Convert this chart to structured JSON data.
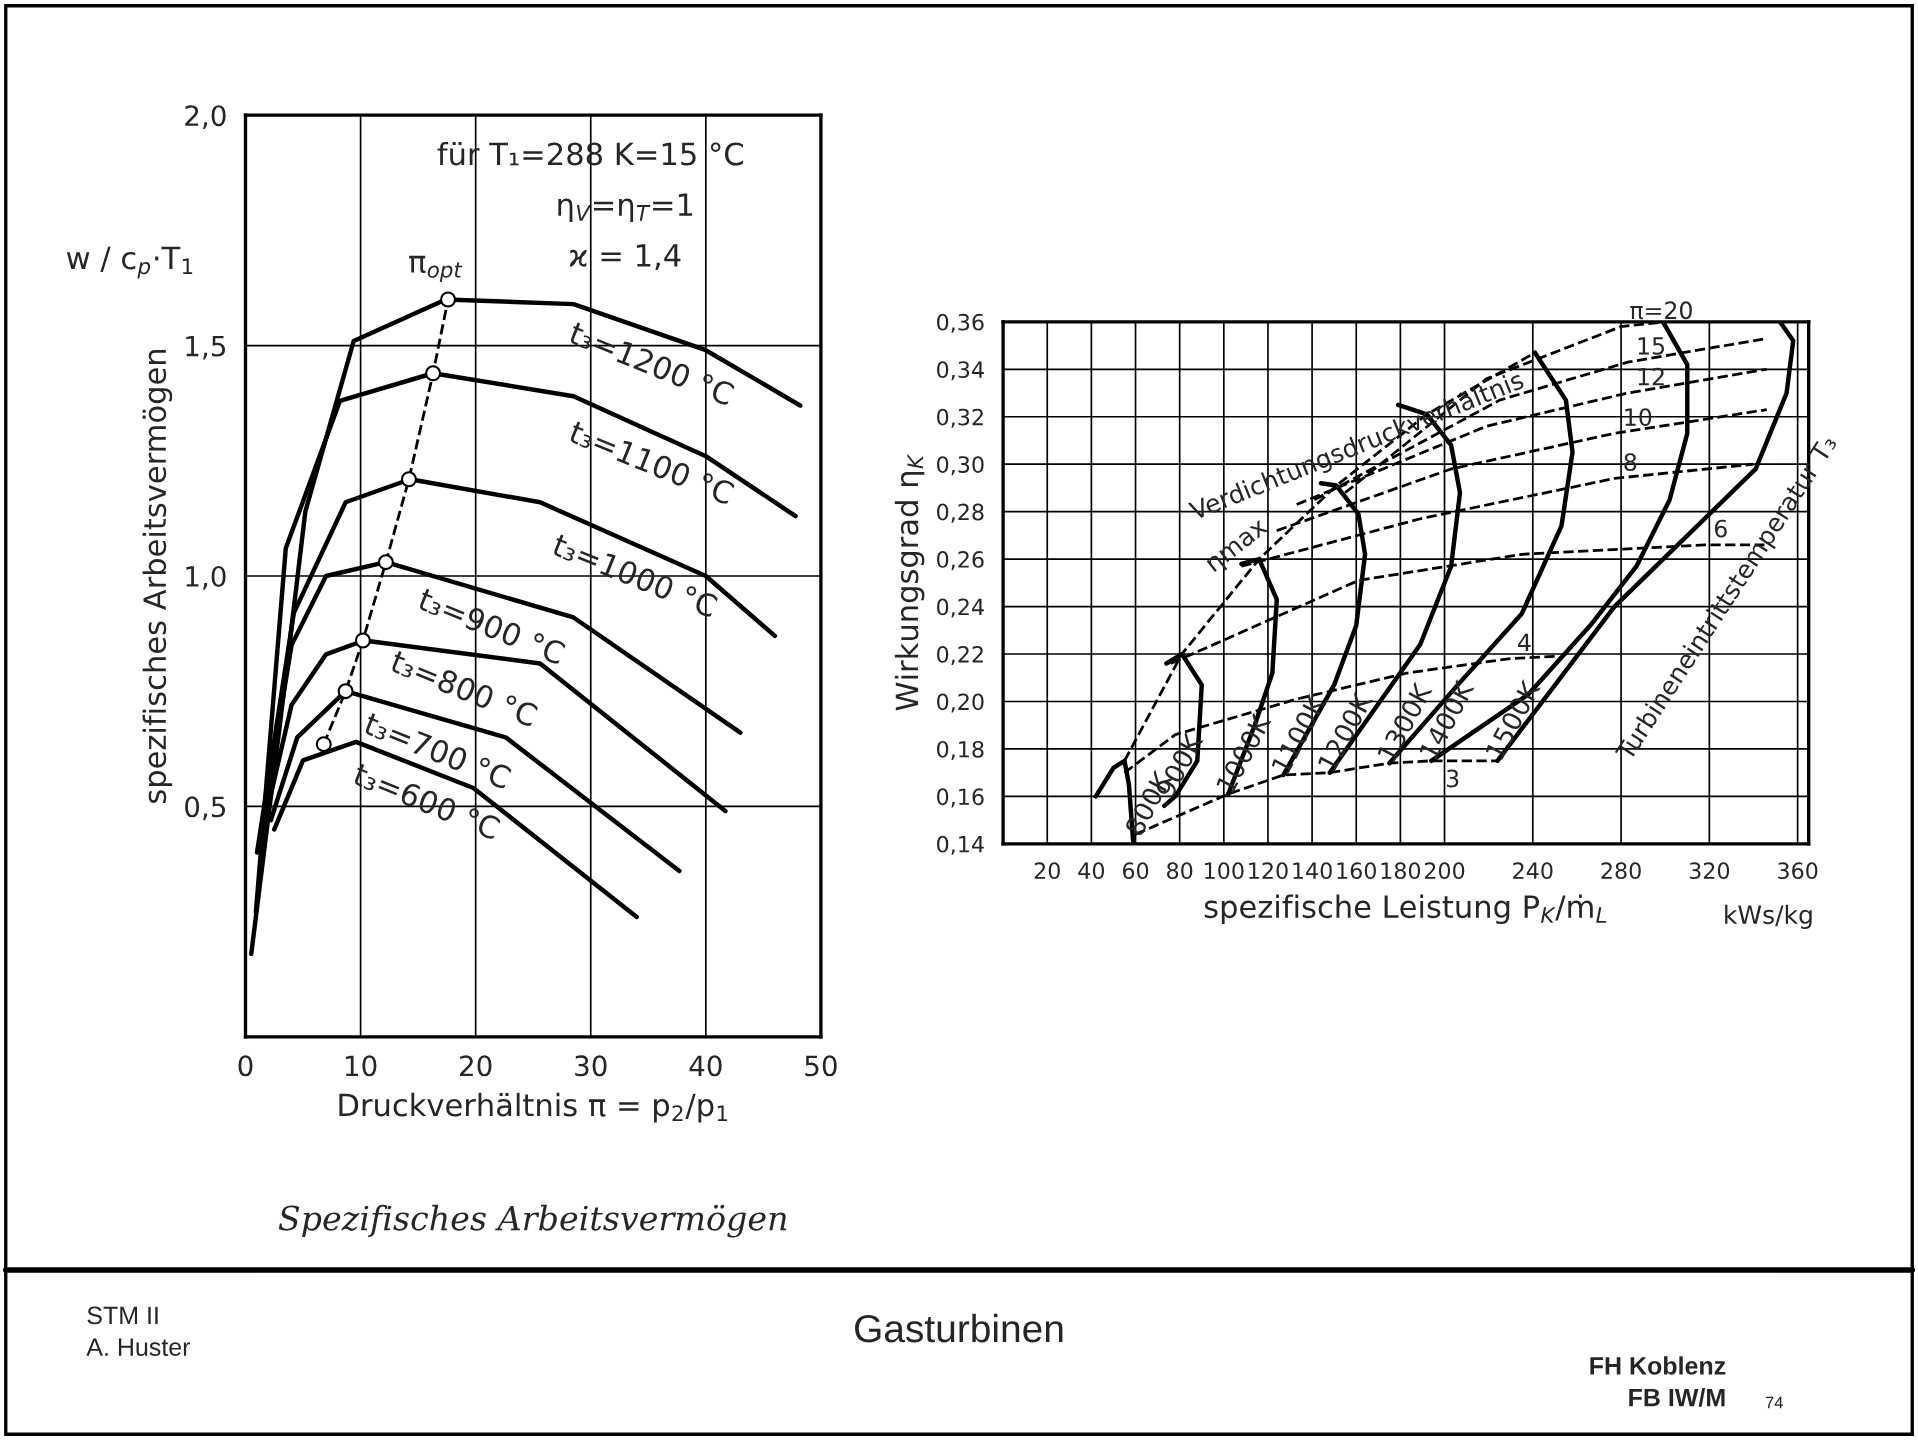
{
  "chart_data": [
    {
      "type": "line",
      "xlabel": "Druckverhältnis π = p$_{2}$/p$_{1}$",
      "ylabel": "spezifisches Arbeitsvermögen",
      "xlim": [
        0,
        50
      ],
      "ylim": [
        0,
        2.0
      ],
      "xticks": [
        0,
        10,
        20,
        30,
        40,
        50
      ],
      "yticks": [
        {
          "value": 0.5,
          "label": "0,5"
        },
        {
          "value": 1.0,
          "label": "1,0"
        },
        {
          "value": 1.5,
          "label": "1,5"
        },
        {
          "value": 2.0,
          "label": "2,0"
        }
      ],
      "grid": true,
      "legend": false,
      "line_style": "solid",
      "annotations": [
        "w / c$_{p}$·T$_{1}$",
        "für T₁=288 K=15 °C",
        "η$_{V}$=η$_{T}$=1",
        "ϰ = 1,4",
        "π$_{opt}$",
        "Spezifisches Arbeitsvermögen"
      ],
      "series": [
        {
          "name": "t₃=1200 °C",
          "color": "#000000",
          "x": [
            0.5,
            3,
            5.2,
            9.4,
            17.4,
            28.5,
            40,
            48.2
          ],
          "values": [
            0.18,
            0.68,
            1.14,
            1.51,
            1.6,
            1.59,
            1.49,
            1.37
          ]
        },
        {
          "name": "t₃=1100 °C",
          "color": "#000000",
          "x": [
            0.9,
            3.5,
            8.2,
            16.3,
            28.5,
            40,
            47.8
          ],
          "values": [
            0.27,
            1.06,
            1.38,
            1.44,
            1.39,
            1.26,
            1.13
          ]
        },
        {
          "name": "t₃=1000 °C",
          "color": "#000000",
          "x": [
            1.0,
            4.2,
            8.7,
            14.3,
            25.6,
            40,
            46
          ],
          "values": [
            0.4,
            0.92,
            1.16,
            1.21,
            1.16,
            1.0,
            0.87
          ]
        },
        {
          "name": "t₃=900 °C",
          "color": "#000000",
          "x": [
            1.2,
            4,
            7,
            12.2,
            28.5,
            43
          ],
          "values": [
            0.42,
            0.85,
            1.0,
            1.03,
            0.91,
            0.66
          ]
        },
        {
          "name": "t₃=800 °C",
          "color": "#000000",
          "x": [
            1.5,
            4,
            7,
            10.3,
            25.6,
            41.7
          ],
          "values": [
            0.45,
            0.72,
            0.83,
            0.86,
            0.81,
            0.49
          ]
        },
        {
          "name": "t₃=700 °C",
          "color": "#000000",
          "x": [
            2.2,
            4.5,
            8.7,
            22.6,
            37.7
          ],
          "values": [
            0.47,
            0.65,
            0.75,
            0.65,
            0.36
          ]
        },
        {
          "name": "t₃=600 °C",
          "color": "#000000",
          "x": [
            2.5,
            5,
            9.6,
            19.8,
            34
          ],
          "values": [
            0.45,
            0.6,
            0.64,
            0.54,
            0.26
          ]
        },
        {
          "color": "#000000",
          "line_style": "dashed",
          "marker": "circle",
          "x": [
            6.8,
            8.7,
            10.2,
            12.2,
            14.2,
            16.3,
            17.6
          ],
          "values": [
            0.635,
            0.75,
            0.86,
            1.03,
            1.21,
            1.44,
            1.6
          ]
        }
      ]
    },
    {
      "type": "line",
      "xlabel": "spezifische Leistung P$_{K}$/ṁ$_{L}$",
      "ylabel": "Wirkungsgrad η$_{K}$",
      "xlim": [
        0,
        365
      ],
      "ylim": [
        0.14,
        0.36
      ],
      "xticks": [
        20,
        40,
        60,
        80,
        100,
        120,
        140,
        160,
        180,
        200,
        240,
        280,
        320,
        360
      ],
      "yticks": [
        {
          "value": 0.14,
          "label": "0,14"
        },
        {
          "value": 0.16,
          "label": "0,16"
        },
        {
          "value": 0.18,
          "label": "0,18"
        },
        {
          "value": 0.2,
          "label": "0,20"
        },
        {
          "value": 0.22,
          "label": "0,22"
        },
        {
          "value": 0.24,
          "label": "0,24"
        },
        {
          "value": 0.26,
          "label": "0,26"
        },
        {
          "value": 0.28,
          "label": "0,28"
        },
        {
          "value": 0.3,
          "label": "0,30"
        },
        {
          "value": 0.32,
          "label": "0,32"
        },
        {
          "value": 0.34,
          "label": "0,34"
        },
        {
          "value": 0.36,
          "label": "0,36"
        }
      ],
      "grid": true,
      "legend": false,
      "line_style": "solid",
      "annotations": [
        "Verdichtungsdruckverhältnis",
        "Turbineneintrittstemperatur T₃",
        "ηmax",
        "kWs/kg"
      ],
      "series": [
        {
          "name": "800K",
          "color": "#000000",
          "x": [
            59,
            57,
            55,
            50,
            42
          ],
          "values": [
            0.14,
            0.165,
            0.175,
            0.172,
            0.16
          ]
        },
        {
          "name": "900K",
          "color": "#000000",
          "x": [
            73,
            78,
            88,
            90,
            81,
            74
          ],
          "values": [
            0.156,
            0.16,
            0.175,
            0.207,
            0.22,
            0.216
          ]
        },
        {
          "name": "1000K",
          "color": "#000000",
          "x": [
            102,
            114,
            122,
            124,
            116,
            108
          ],
          "values": [
            0.161,
            0.19,
            0.212,
            0.243,
            0.26,
            0.258
          ]
        },
        {
          "name": "1100K",
          "color": "#000000",
          "x": [
            127,
            150,
            160,
            164,
            161,
            151,
            144
          ],
          "values": [
            0.169,
            0.207,
            0.232,
            0.262,
            0.279,
            0.291,
            0.292
          ]
        },
        {
          "name": "1200K",
          "color": "#000000",
          "x": [
            148,
            189,
            203,
            207,
            203,
            192,
            179
          ],
          "values": [
            0.17,
            0.224,
            0.257,
            0.288,
            0.308,
            0.321,
            0.325
          ]
        },
        {
          "name": "1300K",
          "color": "#000000",
          "x": [
            175,
            206,
            235,
            253,
            258,
            255,
            241
          ],
          "values": [
            0.174,
            0.207,
            0.237,
            0.274,
            0.305,
            0.327,
            0.347
          ]
        },
        {
          "name": "1400K",
          "color": "#000000",
          "x": [
            194,
            238,
            266,
            287,
            302,
            310,
            310,
            299
          ],
          "values": [
            0.175,
            0.203,
            0.232,
            0.257,
            0.285,
            0.313,
            0.342,
            0.36
          ]
        },
        {
          "name": "1500K",
          "color": "#000000",
          "x": [
            224,
            277,
            341,
            355,
            358,
            352
          ],
          "values": [
            0.175,
            0.24,
            0.298,
            0.33,
            0.352,
            0.36
          ]
        },
        {
          "name": "3",
          "color": "#000000",
          "line_style": "dashed",
          "x": [
            60,
            102,
            127,
            148,
            175,
            194,
            224
          ],
          "values": [
            0.144,
            0.161,
            0.169,
            0.17,
            0.174,
            0.175,
            0.175
          ]
        },
        {
          "name": "4",
          "color": "#000000",
          "line_style": "dashed",
          "x": [
            55,
            78,
            133,
            183,
            229,
            250
          ],
          "values": [
            0.17,
            0.186,
            0.201,
            0.212,
            0.218,
            0.219
          ]
        },
        {
          "name": "6",
          "color": "#000000",
          "line_style": "dashed",
          "x": [
            76,
            161,
            235,
            318,
            345
          ],
          "values": [
            0.216,
            0.251,
            0.262,
            0.266,
            0.266
          ]
        },
        {
          "name": "8",
          "color": "#000000",
          "line_style": "dashed",
          "x": [
            108,
            189,
            277,
            340
          ],
          "values": [
            0.257,
            0.277,
            0.294,
            0.3
          ]
        },
        {
          "name": "10",
          "color": "#000000",
          "line_style": "dashed",
          "x": [
            124,
            203,
            277,
            346
          ],
          "values": [
            0.272,
            0.298,
            0.313,
            0.323
          ]
        },
        {
          "name": "12",
          "color": "#000000",
          "line_style": "dashed",
          "x": [
            133,
            219,
            283,
            346
          ],
          "values": [
            0.283,
            0.316,
            0.33,
            0.34
          ]
        },
        {
          "name": "15",
          "color": "#000000",
          "line_style": "dashed",
          "x": [
            141,
            225,
            283,
            346
          ],
          "values": [
            0.285,
            0.327,
            0.343,
            0.353
          ]
        },
        {
          "name": "π=20",
          "color": "#000000",
          "line_style": "dashed",
          "x": [
            155,
            219,
            280,
            300
          ],
          "values": [
            0.288,
            0.336,
            0.358,
            0.36
          ]
        },
        {
          "color": "#000000",
          "line_style": "dashed",
          "x": [
            55,
            81,
            116,
            151,
            192,
            241
          ],
          "values": [
            0.175,
            0.22,
            0.26,
            0.291,
            0.321,
            0.347
          ]
        }
      ]
    },
    {
      "type": "other",
      "annotations": [
        "STM II",
        "A. Huster",
        "Gasturbinen",
        "FH Koblenz",
        "FB IW/M",
        "74"
      ]
    }
  ]
}
